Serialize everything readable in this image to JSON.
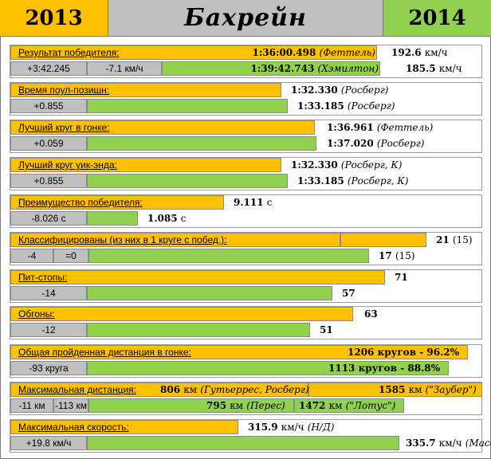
{
  "header": {
    "left": "2013",
    "title": "Бахрейн",
    "right": "2014"
  },
  "colors": {
    "y2013": "#ffc000",
    "y2014": "#92d050",
    "neutral": "#c0c0c0"
  },
  "rows": {
    "winner": {
      "label": "Результат победителя:",
      "v2013": "1:36:00.498",
      "d2013": "(Феттель)",
      "speed2013": "192.6",
      "unit2013": "км/ч",
      "diff1": "+3:42.245",
      "diff2": "-7.1 км/ч",
      "v2014": "1:39:42.743",
      "d2014": "(Хэмилтон)",
      "speed2014": "185.5",
      "unit2014": "км/ч"
    },
    "pole": {
      "label": "Время поул-позишн:",
      "v2013": "1:32.330",
      "d2013": "(Росберг)",
      "diff": "+0.855",
      "v2014": "1:33.185",
      "d2014": "(Росберг)"
    },
    "fastlap": {
      "label": "Лучший круг в гонке:",
      "v2013": "1:36.961",
      "d2013": "(Феттель)",
      "diff": "+0.059",
      "v2014": "1:37.020",
      "d2014": "(Росберг)"
    },
    "weekend": {
      "label": "Лучший круг уик-энда:",
      "v2013": "1:32.330",
      "d2013": "(Росберг, К)",
      "diff": "+0.855",
      "v2014": "1:33.185",
      "d2014": "(Росберг, К)"
    },
    "margin": {
      "label": "Преимущество победителя:",
      "v2013": "9.111",
      "u2013": "с",
      "diff": "-8.026 с",
      "v2014": "1.085",
      "u2014": "с"
    },
    "classified": {
      "label": "Классифицированы (из них в 1 круге с побед.):",
      "v2013": "21",
      "s2013": "(15)",
      "diff1": "-4",
      "diff2": "=0",
      "v2014": "17",
      "s2014": "(15)"
    },
    "pits": {
      "label": "Пит-стопы:",
      "v2013": "71",
      "diff": "-14",
      "v2014": "57"
    },
    "overtakes": {
      "label": "Обгоны:",
      "v2013": "63",
      "diff": "-12",
      "v2014": "51"
    },
    "distance": {
      "label": "Общая пройденная дистанция в гонке:",
      "v2013": "1206",
      "u2013": "кругов - 96.2%",
      "diff": "-93 круга",
      "v2014": "1113",
      "u2014": "кругов - 88.8%"
    },
    "maxdist": {
      "label": "Максимальная дистанция:",
      "a2013": "806",
      "a2013u": "км",
      "a2013d": "(Гутьеррес, Росберг)",
      "b2013": "1585",
      "b2013u": "км",
      "b2013d": "(\"Заубер\")",
      "diff1": "-11 км",
      "diff2": "-113 км",
      "a2014": "795",
      "a2014u": "км",
      "a2014d": "(Перес)",
      "b2014": "1472",
      "b2014u": "км",
      "b2014d": "(\"Лотус\")"
    },
    "maxspeed": {
      "label": "Максимальная скорость:",
      "v2013": "315.9",
      "u2013": "км/ч",
      "d2013": "(Н/Д)",
      "diff": "+19.8 км/ч",
      "v2014": "335.7",
      "u2014": "км/ч",
      "d2014": "(Масса)"
    }
  }
}
